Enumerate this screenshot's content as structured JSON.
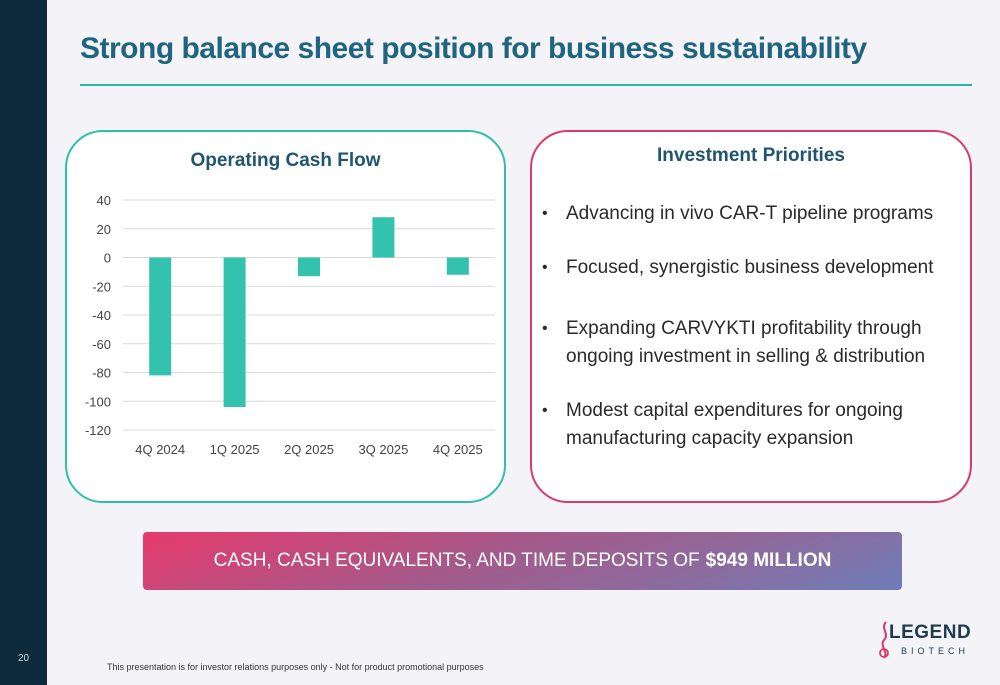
{
  "slide": {
    "title": "Strong balance sheet position for business sustainability",
    "page_number": "20",
    "footer_note": "This presentation is for investor relations purposes only - Not for product promotional purposes"
  },
  "chart_card": {
    "title": "Operating Cash Flow"
  },
  "chart_data": {
    "type": "bar",
    "title": "Operating Cash Flow",
    "categories": [
      "4Q 2024",
      "1Q 2025",
      "2Q 2025",
      "3Q 2025",
      "4Q 2025"
    ],
    "values": [
      -82,
      -104,
      -13,
      28,
      -12
    ],
    "ylim": [
      -120,
      40
    ],
    "yticks": [
      "40",
      "20",
      "0",
      "-20",
      "-40",
      "-60",
      "-80",
      "-100",
      "-120"
    ],
    "grid": true,
    "bar_color": "#33c2ae"
  },
  "priorities": {
    "title": "Investment Priorities",
    "items": [
      "Advancing in vivo CAR-T pipeline programs",
      "Focused, synergistic business development",
      "Expanding CARVYKTI profitability through ongoing investment in selling & distribution",
      "Modest capital expenditures for ongoing manufacturing capacity expansion"
    ]
  },
  "banner": {
    "text": "CASH, CASH EQUIVALENTS, AND TIME DEPOSITS OF",
    "amount": "$949 MILLION"
  },
  "logo": {
    "word": "LEGEND",
    "sub": "BIOTECH",
    "icon": "dna-strand-icon"
  },
  "colors": {
    "sidebar": "#0d2b3d",
    "title": "#1f6580",
    "teal_accent": "#2fbfa9",
    "pink_accent": "#d93a68"
  }
}
